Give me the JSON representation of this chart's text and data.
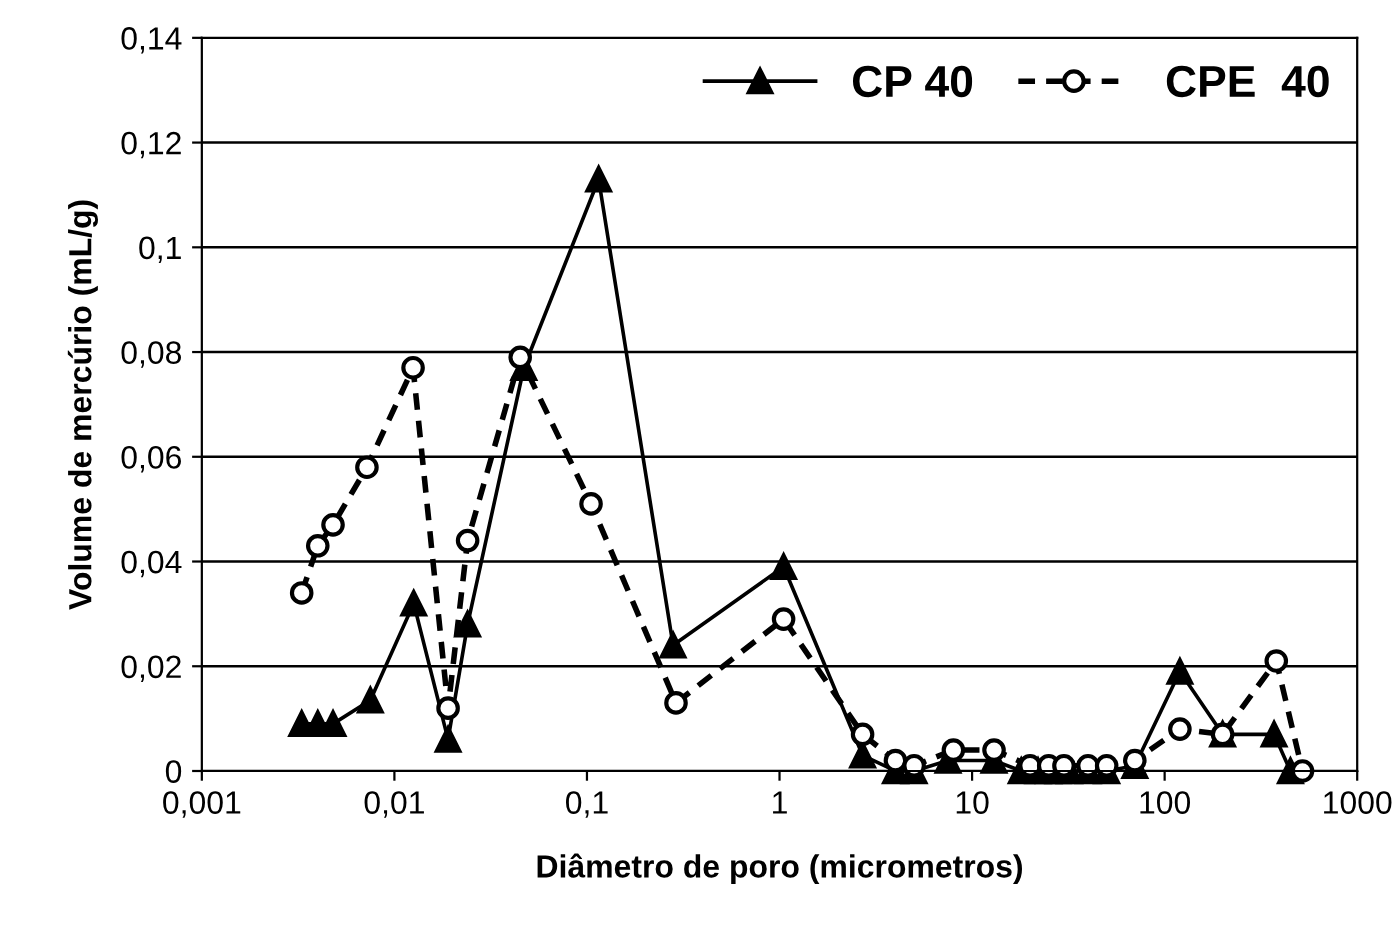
{
  "chart_data": {
    "type": "line",
    "xlabel": "Diâmetro de poro (micrometros)",
    "ylabel": "Volume de mercúrio (mL/g)",
    "log": "x",
    "xlim": [
      0.001,
      1000
    ],
    "xticks": [
      {
        "value": 0.001,
        "label": "0,001"
      },
      {
        "value": 0.01,
        "label": "0,01"
      },
      {
        "value": 0.1,
        "label": "0,1"
      },
      {
        "value": 1,
        "label": "1"
      },
      {
        "value": 10,
        "label": "10"
      },
      {
        "value": 100,
        "label": "100"
      },
      {
        "value": 1000,
        "label": "1000"
      }
    ],
    "ylim": [
      0,
      0.14
    ],
    "yticks": [
      {
        "value": 0,
        "label": "0"
      },
      {
        "value": 0.02,
        "label": "0,02"
      },
      {
        "value": 0.04,
        "label": "0,04"
      },
      {
        "value": 0.06,
        "label": "0,06"
      },
      {
        "value": 0.08,
        "label": "0,08"
      },
      {
        "value": 0.1,
        "label": "0,1"
      },
      {
        "value": 0.12,
        "label": "0,12"
      },
      {
        "value": 0.14,
        "label": "0,14"
      }
    ],
    "grid": "y",
    "legend": "top right",
    "series": [
      {
        "name": "CP 40",
        "color": "#000000",
        "marker": "triangle",
        "line_style": "solid",
        "x": [
          0.0033,
          0.004,
          0.0048,
          0.0075,
          0.0126,
          0.019,
          0.024,
          0.047,
          0.115,
          0.28,
          1.05,
          2.7,
          4,
          5,
          7.5,
          13,
          18,
          22,
          25,
          28,
          32,
          40,
          50,
          70,
          120,
          200,
          370,
          450
        ],
        "values": [
          0.009,
          0.009,
          0.009,
          0.0135,
          0.032,
          0.006,
          0.028,
          0.077,
          0.113,
          0.024,
          0.039,
          0.003,
          0.0,
          0.0,
          0.002,
          0.002,
          0.0,
          0.0,
          0.0,
          0.0,
          0.0,
          0.0,
          0.0,
          0.001,
          0.019,
          0.007,
          0.007,
          0.0
        ]
      },
      {
        "name": "CPE  40",
        "color": "#000000",
        "marker": "circle",
        "line_style": "dashed",
        "x": [
          0.0033,
          0.004,
          0.0048,
          0.0072,
          0.0125,
          0.019,
          0.024,
          0.045,
          0.105,
          0.29,
          1.05,
          2.7,
          4,
          5,
          8,
          13,
          20,
          25,
          30,
          40,
          50,
          70,
          120,
          200,
          380,
          520
        ],
        "values": [
          0.034,
          0.043,
          0.047,
          0.058,
          0.077,
          0.012,
          0.044,
          0.079,
          0.051,
          0.013,
          0.029,
          0.007,
          0.002,
          0.001,
          0.004,
          0.004,
          0.001,
          0.001,
          0.001,
          0.001,
          0.001,
          0.002,
          0.008,
          0.007,
          0.021,
          0.0
        ]
      }
    ]
  }
}
